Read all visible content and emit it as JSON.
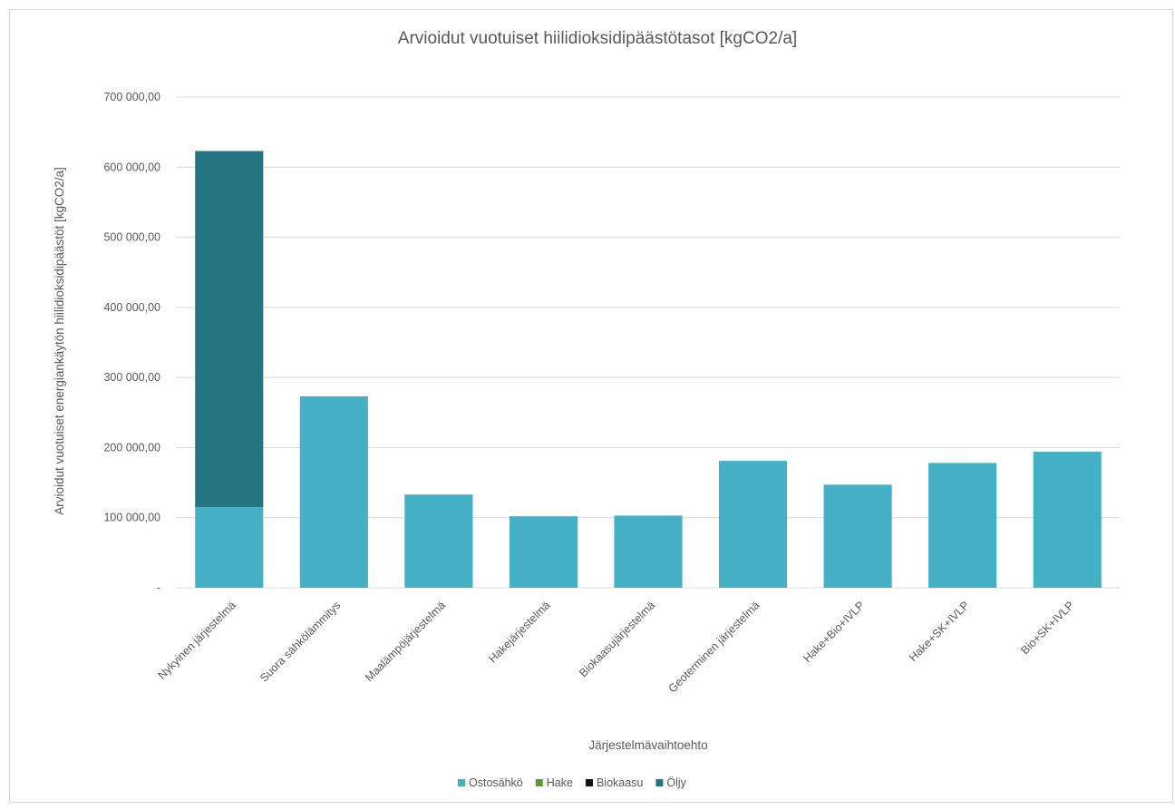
{
  "chart_data": {
    "type": "bar",
    "stacked": true,
    "title": "Arvioidut vuotuiset hiilidioksidipäästötasot [kgCO2/a]",
    "xlabel": "Järjestelmävaihtoehto",
    "ylabel": "Arvioidut vuotuiset energiankäytön hiilidioksidipäästöt [kgCO2/a]",
    "ylim": [
      0,
      700000
    ],
    "yticks": [
      0,
      100000,
      200000,
      300000,
      400000,
      500000,
      600000,
      700000
    ],
    "ytick_labels": [
      "-",
      "100 000,00",
      "200 000,00",
      "300 000,00",
      "400 000,00",
      "500 000,00",
      "600 000,00",
      "700 000,00"
    ],
    "grid": true,
    "legend_position": "bottom",
    "categories": [
      "Nykyinen järjestelmä",
      "Suora sähkölämmitys",
      "Maalämpöjärjestelmä",
      "Hakejärjestelmä",
      "Biokaasujärjestelmä",
      "Geoterminen järjestelmä",
      "Hake+Bio+IVLP",
      "Hake+SK+IVLP",
      "Bio+SK+IVLP"
    ],
    "series": [
      {
        "name": "Ostosähkö",
        "color": "#43b0c6",
        "values": [
          115000,
          273000,
          133000,
          102000,
          103000,
          181000,
          147000,
          178000,
          194000
        ]
      },
      {
        "name": "Hake",
        "color": "#5a9a35",
        "values": [
          0,
          0,
          0,
          0,
          0,
          0,
          0,
          0,
          0
        ]
      },
      {
        "name": "Biokaasu",
        "color": "#111111",
        "values": [
          0,
          0,
          0,
          0,
          0,
          0,
          0,
          0,
          0
        ]
      },
      {
        "name": "Öljy",
        "color": "#247482",
        "values": [
          508000,
          0,
          0,
          0,
          0,
          0,
          0,
          0,
          0
        ]
      }
    ]
  }
}
